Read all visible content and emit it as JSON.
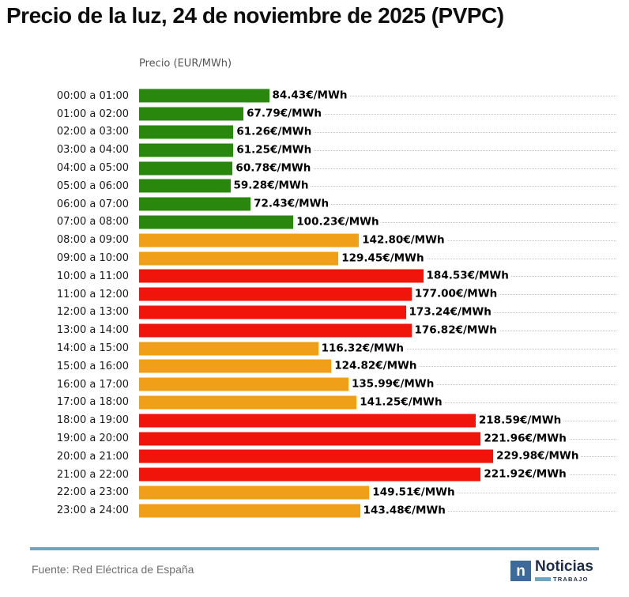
{
  "title": "Precio de la luz, 24 de noviembre de 2025 (PVPC)",
  "axis_label": "Precio (EUR/MWh)",
  "palette": {
    "green": "#2a870e",
    "orange": "#f0a018",
    "red": "#f1140a"
  },
  "ui_colors": {
    "footer_line": "#72a3c0",
    "logo_square": "#3c6a9a",
    "logo_navy": "#1d2c49",
    "grid_dotted": "#c3c3c3"
  },
  "chart_data": {
    "type": "bar",
    "orientation": "horizontal",
    "title": "Precio de la luz, 24 de noviembre de 2025 (PVPC)",
    "xlabel": "Precio (EUR/MWh)",
    "unit_suffix": "€/MWh",
    "xlim": [
      0,
      310
    ],
    "x_axis_ticks_visible": false,
    "grid": "dotted-horizontal-per-row",
    "legend_position": "none",
    "categories": [
      "00:00 a 01:00",
      "01:00 a 02:00",
      "02:00 a 03:00",
      "03:00 a 04:00",
      "04:00 a 05:00",
      "05:00 a 06:00",
      "06:00 a 07:00",
      "07:00 a 08:00",
      "08:00 a 09:00",
      "09:00 a 10:00",
      "10:00 a 11:00",
      "11:00 a 12:00",
      "12:00 a 13:00",
      "13:00 a 14:00",
      "14:00 a 15:00",
      "15:00 a 16:00",
      "16:00 a 17:00",
      "17:00 a 18:00",
      "18:00 a 19:00",
      "19:00 a 20:00",
      "20:00 a 21:00",
      "21:00 a 22:00",
      "22:00 a 23:00",
      "23:00 a 24:00"
    ],
    "values": [
      84.43,
      67.79,
      61.26,
      61.25,
      60.78,
      59.28,
      72.43,
      100.23,
      142.8,
      129.45,
      184.53,
      177.0,
      173.24,
      176.82,
      116.32,
      124.82,
      135.99,
      141.25,
      218.59,
      221.96,
      229.98,
      221.92,
      149.51,
      143.48
    ],
    "levels": [
      "green",
      "green",
      "green",
      "green",
      "green",
      "green",
      "green",
      "green",
      "orange",
      "orange",
      "red",
      "red",
      "red",
      "red",
      "orange",
      "orange",
      "orange",
      "orange",
      "red",
      "red",
      "red",
      "red",
      "orange",
      "orange"
    ]
  },
  "footer": {
    "source": "Fuente: Red Eléctrica de España",
    "logo": {
      "letter": "n",
      "name": "Noticias",
      "sub": "TRABAJO"
    }
  }
}
